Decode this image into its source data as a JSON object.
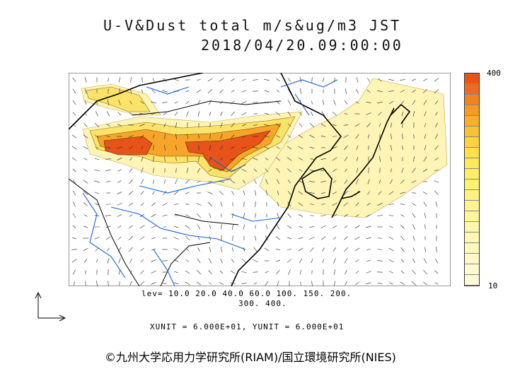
{
  "title": {
    "line1": "U-V&Dust total m/s&ug/m3 JST",
    "line2": "2018/04/20.09:00:00"
  },
  "legend": {
    "max_label": "400",
    "min_label": "10",
    "colors": [
      "#e8531a",
      "#ef6a1c",
      "#f3821f",
      "#f69a24",
      "#f8b02b",
      "#f9c233",
      "#fad43e",
      "#fbe14a",
      "#fce957",
      "#fdee65",
      "#fdf073",
      "#fef281",
      "#fef48f",
      "#fef59c",
      "#fef6a8",
      "#fff7b3",
      "#fff8bd",
      "#fff9c6",
      "#fffacf",
      "#fffbd8"
    ]
  },
  "levels": {
    "line1": "lev= 10.0 20.0 40.0 60.0 100. 150. 200.",
    "line2": "300. 400."
  },
  "units_text": "XUNIT = 6.000E+01, YUNIT = 6.000E+01",
  "copyright": "©九州大学応用力学研究所(RIAM)/国立環境研究所(NIES)",
  "colors": {
    "coast": "#000000",
    "river": "#1a5fd6",
    "dust_high": "#e8531a",
    "dust_mid": "#f7a52a",
    "dust_low": "#fbe36a",
    "dust_faint": "#fdf4b5"
  }
}
